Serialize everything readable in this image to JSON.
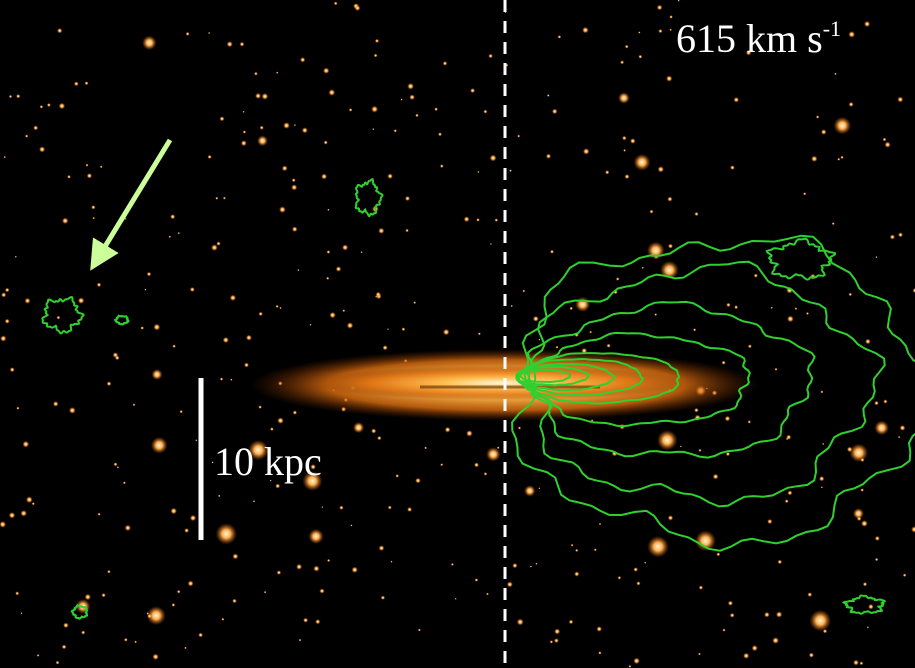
{
  "labels": {
    "velocity": "615 km s",
    "velocity_exponent": "-1",
    "scale_bar": "10 kpc"
  }
}
